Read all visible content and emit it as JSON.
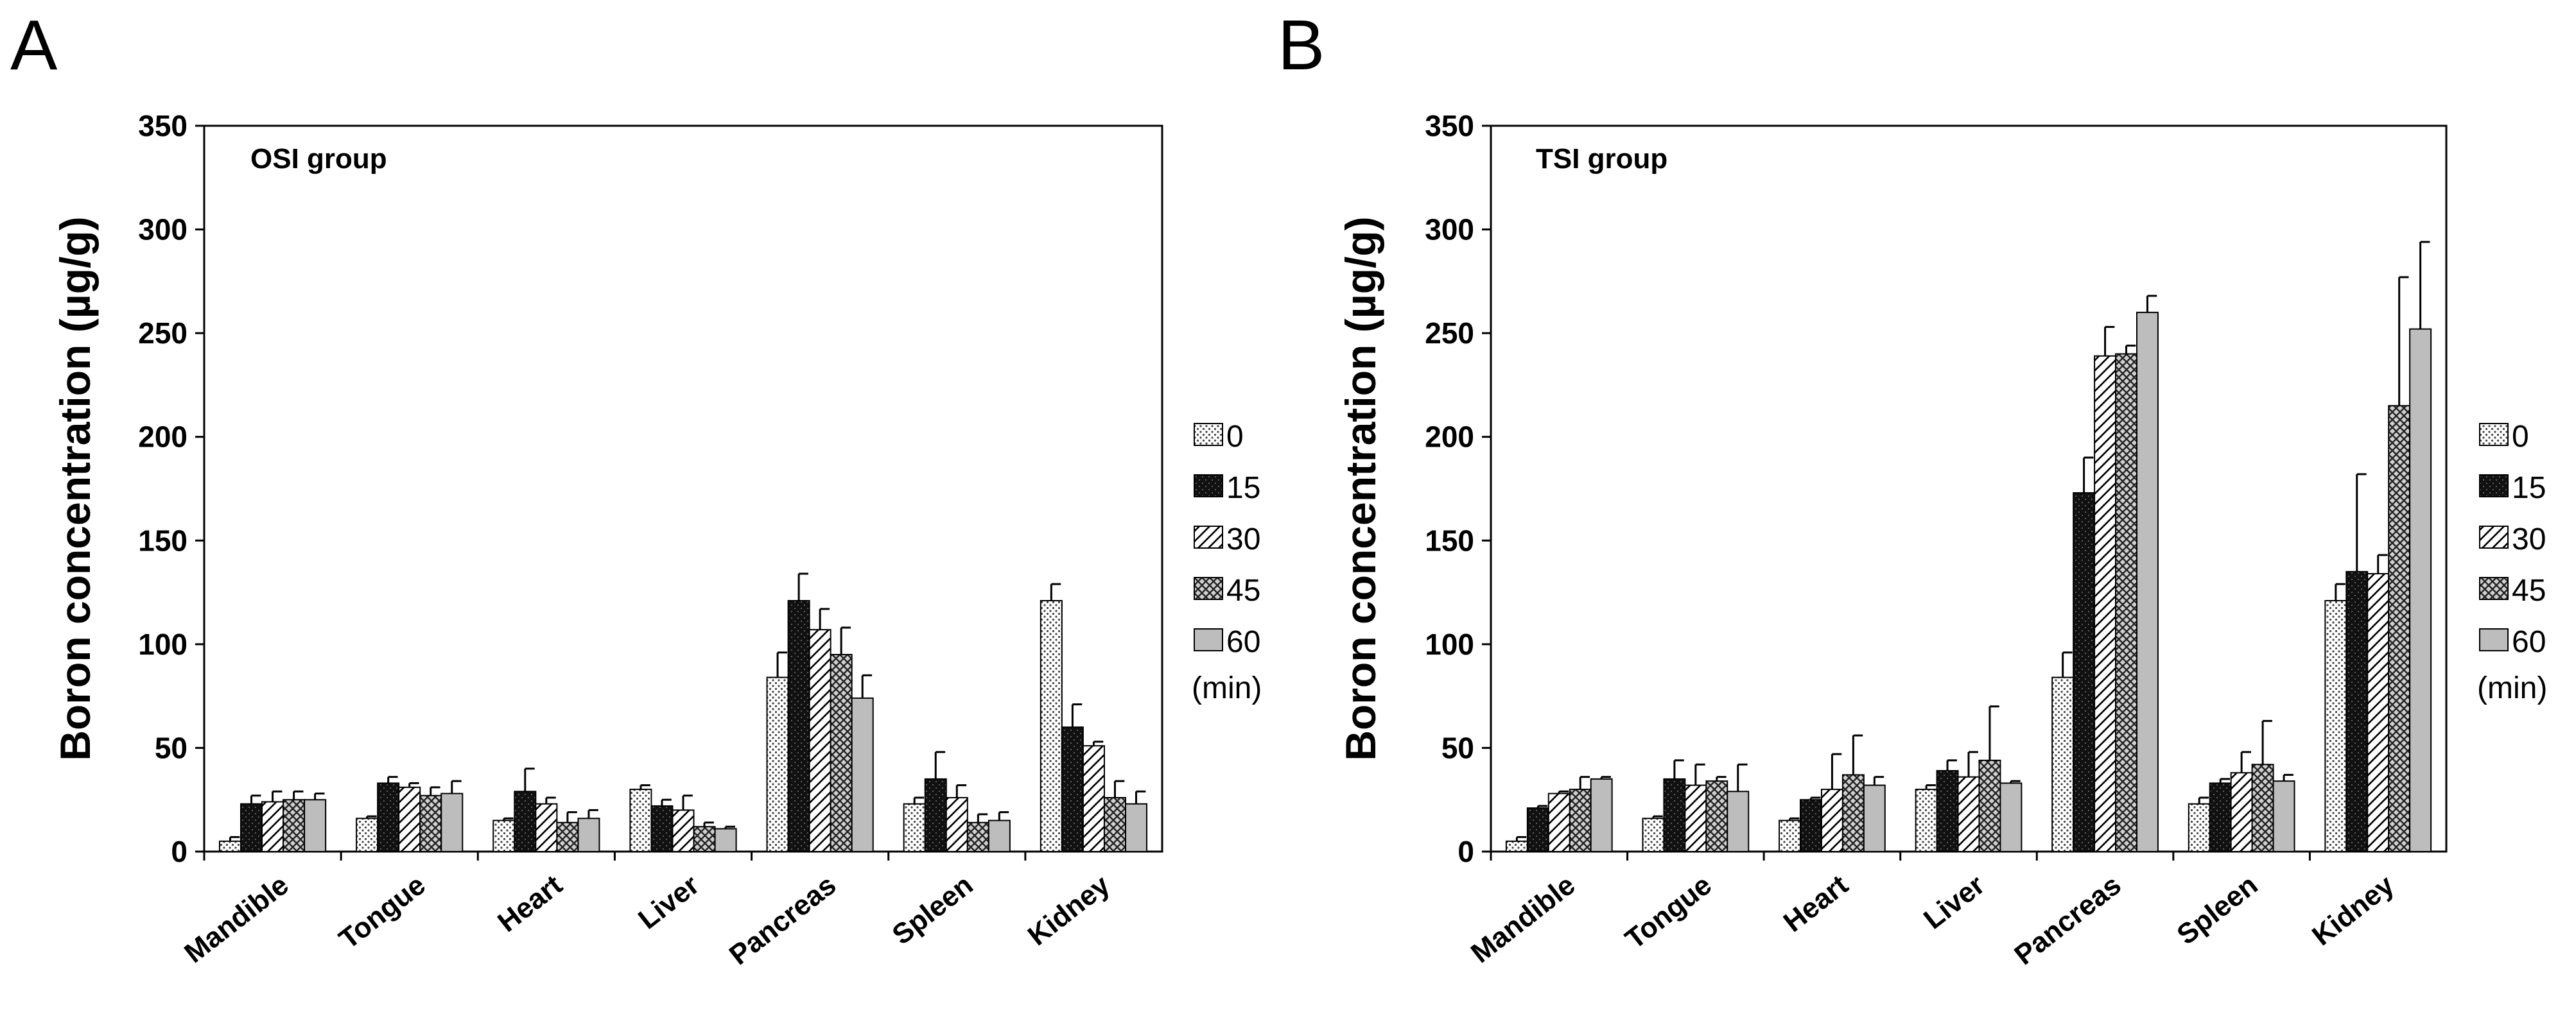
{
  "panels": {
    "a": {
      "letter": "A"
    },
    "b": {
      "letter": "B"
    }
  },
  "colors": {
    "s0": "#d8d8d8",
    "s15": "#141414",
    "s30": "#ffffff",
    "s45": "#6a6a6a",
    "s60": "#bdbdbd",
    "axis": "#000000"
  },
  "chart_data": [
    {
      "type": "bar",
      "title": "OSI group",
      "xlabel": "",
      "ylabel": "Boron concentration (µg/g)",
      "ylim": [
        0,
        350
      ],
      "yticks": [
        0,
        50,
        100,
        150,
        200,
        250,
        300,
        350
      ],
      "categories": [
        "Mandible",
        "Tongue",
        "Heart",
        "Liver",
        "Pancreas",
        "Spleen",
        "Kidney"
      ],
      "legend_title": "(min)",
      "legend_position": "right",
      "series": [
        {
          "name": "0",
          "pattern": "dots",
          "values": [
            5,
            16,
            15,
            30,
            84,
            23,
            121
          ],
          "errors": [
            2,
            1,
            1,
            2,
            12,
            3,
            8
          ]
        },
        {
          "name": "15",
          "pattern": "black",
          "values": [
            23,
            33,
            29,
            22,
            121,
            35,
            60
          ],
          "errors": [
            4,
            3,
            11,
            3,
            13,
            13,
            11
          ]
        },
        {
          "name": "30",
          "pattern": "diagonal",
          "values": [
            24,
            31,
            23,
            20,
            107,
            26,
            51
          ],
          "errors": [
            5,
            2,
            3,
            7,
            10,
            6,
            2
          ]
        },
        {
          "name": "45",
          "pattern": "crosshatch",
          "values": [
            25,
            27,
            14,
            12,
            95,
            14,
            26
          ],
          "errors": [
            4,
            4,
            5,
            2,
            13,
            4,
            8
          ]
        },
        {
          "name": "60",
          "pattern": "gray",
          "values": [
            25,
            28,
            16,
            11,
            74,
            15,
            23
          ],
          "errors": [
            3,
            6,
            4,
            1,
            11,
            4,
            6
          ]
        }
      ]
    },
    {
      "type": "bar",
      "title": "TSI group",
      "xlabel": "",
      "ylabel": "Boron concentration (µg/g)",
      "ylim": [
        0,
        350
      ],
      "yticks": [
        0,
        50,
        100,
        150,
        200,
        250,
        300,
        350
      ],
      "categories": [
        "Mandible",
        "Tongue",
        "Heart",
        "Liver",
        "Pancreas",
        "Spleen",
        "Kidney"
      ],
      "legend_title": "(min)",
      "legend_position": "right",
      "series": [
        {
          "name": "0",
          "pattern": "dots",
          "values": [
            5,
            16,
            15,
            30,
            84,
            23,
            121
          ],
          "errors": [
            2,
            1,
            1,
            2,
            12,
            3,
            8
          ]
        },
        {
          "name": "15",
          "pattern": "black",
          "values": [
            21,
            35,
            25,
            39,
            173,
            33,
            135
          ],
          "errors": [
            1,
            9,
            1,
            5,
            17,
            2,
            47
          ]
        },
        {
          "name": "30",
          "pattern": "diagonal",
          "values": [
            28,
            32,
            30,
            36,
            239,
            38,
            134
          ],
          "errors": [
            1,
            10,
            17,
            12,
            14,
            10,
            9
          ]
        },
        {
          "name": "45",
          "pattern": "crosshatch",
          "values": [
            30,
            34,
            37,
            44,
            240,
            42,
            215
          ],
          "errors": [
            6,
            2,
            19,
            26,
            4,
            21,
            62
          ]
        },
        {
          "name": "60",
          "pattern": "gray",
          "values": [
            35,
            29,
            32,
            33,
            260,
            34,
            252
          ],
          "errors": [
            1,
            13,
            4,
            1,
            8,
            3,
            42
          ]
        }
      ]
    }
  ]
}
